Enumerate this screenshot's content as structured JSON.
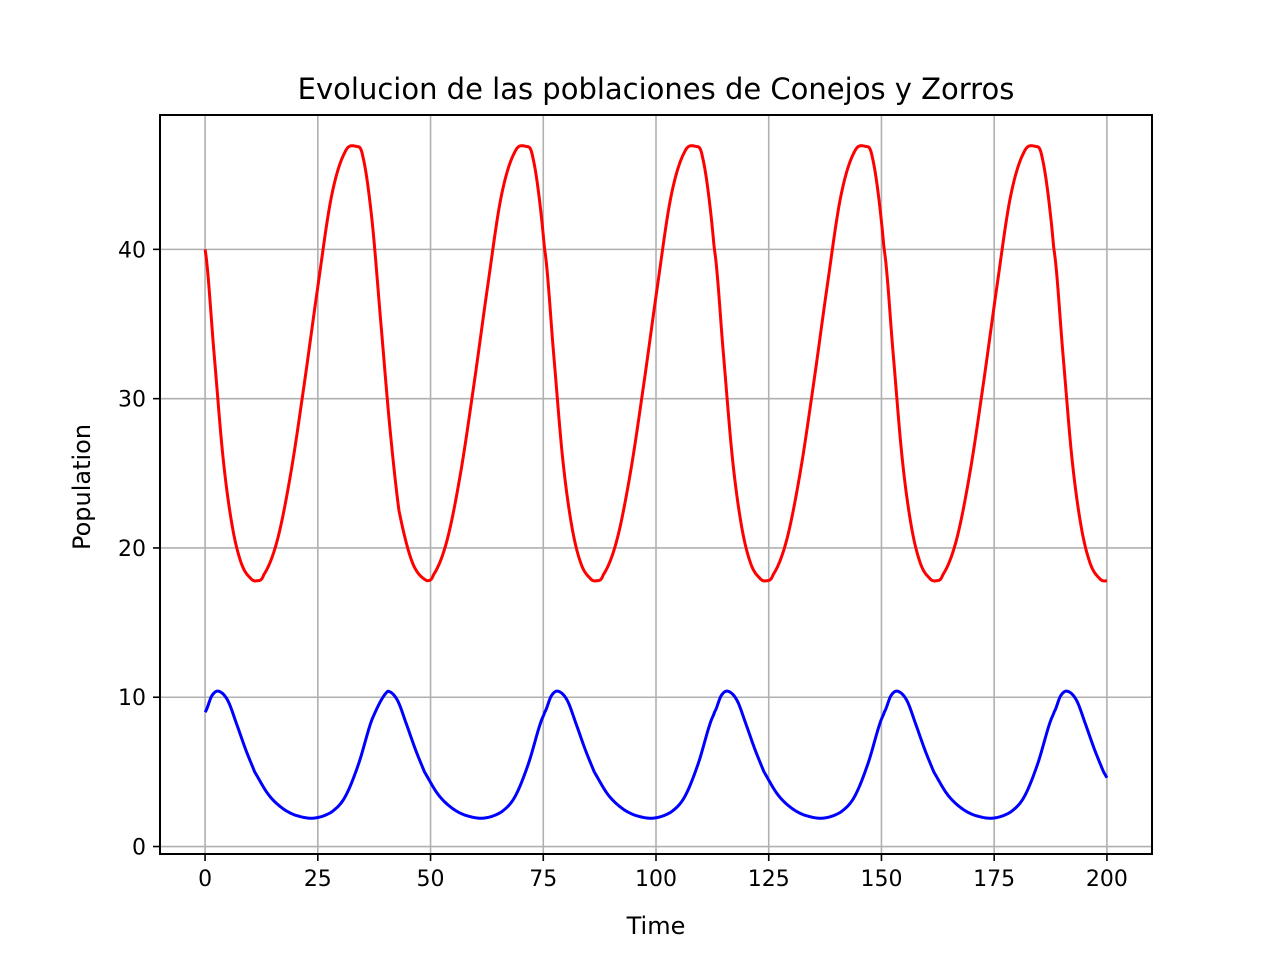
{
  "chart_data": {
    "type": "line",
    "title": "Evolucion de las poblaciones de Conejos y Zorros",
    "xlabel": "Time",
    "ylabel": "Population",
    "xlim": [
      -10,
      210
    ],
    "ylim": [
      -0.5,
      49
    ],
    "xticks": [
      0,
      25,
      50,
      75,
      100,
      125,
      150,
      175,
      200
    ],
    "yticks": [
      0,
      10,
      20,
      30,
      40
    ],
    "grid": true,
    "legend": "none",
    "series": [
      {
        "color": "#ff0000",
        "x": [
          0,
          2,
          4,
          6,
          8,
          10,
          11.5,
          13,
          16,
          19,
          22,
          25,
          28,
          31,
          33.5,
          35,
          37,
          39,
          41,
          43,
          46,
          49.2
        ],
        "values": [
          40,
          33,
          26,
          21.5,
          19,
          18,
          17.8,
          18.2,
          20.5,
          25,
          31,
          37.5,
          43.5,
          46.5,
          46.9,
          46.2,
          42,
          35,
          28,
          22.5,
          19,
          17.8
        ]
      },
      {
        "color": "#0000ff",
        "x": [
          0,
          1.5,
          3,
          5,
          7,
          9,
          11,
          14,
          17,
          20,
          24,
          28,
          31,
          34,
          37,
          40.5
        ],
        "values": [
          9,
          10.1,
          10.4,
          9.8,
          8.2,
          6.5,
          5,
          3.5,
          2.6,
          2.1,
          1.9,
          2.3,
          3.3,
          5.5,
          8.5,
          10.4
        ]
      }
    ],
    "period": 37.65
  }
}
